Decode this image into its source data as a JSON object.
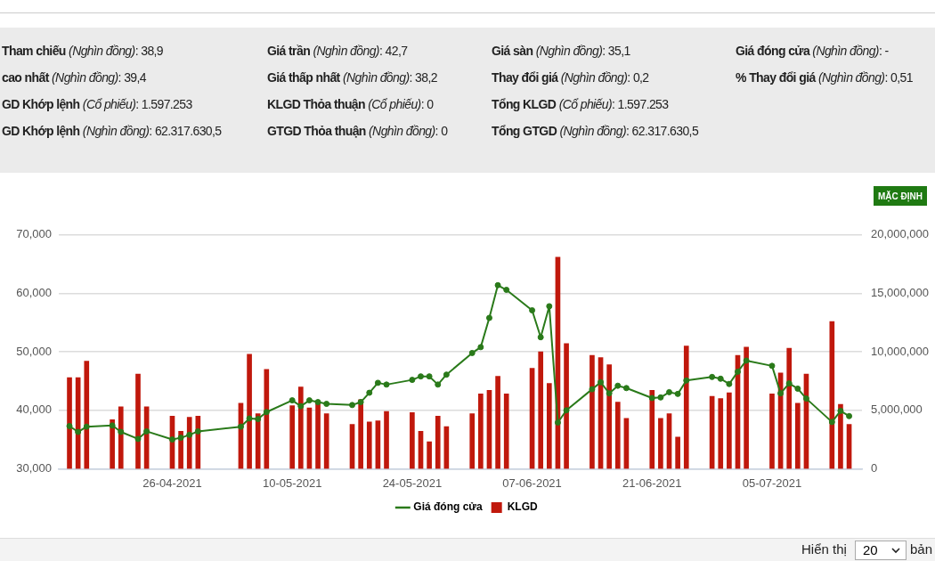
{
  "chart_data": {
    "type": "bar",
    "annotations": [
      "Tham chiếu (Nghìn đồng): 38,9",
      "Giá trần (Nghìn đồng): 42,7",
      "Giá sàn (Nghìn đồng): 35,1",
      "Giá đóng cửa (Nghìn đồng): -",
      "cao nhất (Nghìn đồng): 39,4",
      "Giá thấp nhất (Nghìn đồng): 38,2",
      "Thay đổi giá (Nghìn đồng): 0,2",
      "% Thay đổi giá (Nghìn đồng): 0,51",
      "GD Khớp lệnh (Cổ phiếu): 1.597.253",
      "KLGD Thỏa thuận (Cổ phiếu): 0",
      "Tổng KLGD (Cổ phiếu): 1.597.253",
      "GD Khớp lệnh (Nghìn đồng): 62.317.630,5",
      "GTGD Thỏa thuận (Nghìn đồng): 0",
      "Tổng GTGD (Nghìn đồng): 62.317.630,5",
      "MẶC ĐỊNH",
      "Hiển thị",
      "20",
      "bản"
    ],
    "x": [
      "2021-04-14",
      "2021-04-15",
      "2021-04-16",
      "2021-04-19",
      "2021-04-20",
      "2021-04-22",
      "2021-04-23",
      "2021-04-26",
      "2021-04-27",
      "2021-04-28",
      "2021-04-29",
      "2021-05-04",
      "2021-05-05",
      "2021-05-06",
      "2021-05-07",
      "2021-05-10",
      "2021-05-11",
      "2021-05-12",
      "2021-05-13",
      "2021-05-14",
      "2021-05-17",
      "2021-05-18",
      "2021-05-19",
      "2021-05-20",
      "2021-05-21",
      "2021-05-24",
      "2021-05-25",
      "2021-05-26",
      "2021-05-27",
      "2021-05-28",
      "2021-05-31",
      "2021-06-01",
      "2021-06-02",
      "2021-06-03",
      "2021-06-04",
      "2021-06-07",
      "2021-06-08",
      "2021-06-09",
      "2021-06-10",
      "2021-06-11",
      "2021-06-14",
      "2021-06-15",
      "2021-06-16",
      "2021-06-17",
      "2021-06-18",
      "2021-06-21",
      "2021-06-22",
      "2021-06-23",
      "2021-06-24",
      "2021-06-25",
      "2021-06-28",
      "2021-06-29",
      "2021-06-30",
      "2021-07-01",
      "2021-07-02",
      "2021-07-05",
      "2021-07-06",
      "2021-07-07",
      "2021-07-08",
      "2021-07-09",
      "2021-07-12",
      "2021-07-13",
      "2021-07-14"
    ],
    "series": [
      {
        "name": "Giá đóng cửa",
        "type": "line",
        "color": "#2a7a1a",
        "values": [
          37300,
          36300,
          37200,
          37400,
          36300,
          35100,
          36400,
          35000,
          35300,
          35800,
          36400,
          37200,
          38600,
          38500,
          39700,
          41700,
          40700,
          41700,
          41400,
          41100,
          40900,
          41400,
          43000,
          44700,
          44400,
          45200,
          45800,
          45800,
          44400,
          46100,
          49800,
          50800,
          55800,
          61400,
          60600,
          57100,
          52500,
          57800,
          37900,
          40000,
          43600,
          44800,
          42900,
          44200,
          43800,
          42100,
          42200,
          43100,
          42800,
          45100,
          45700,
          45400,
          44500,
          46600,
          48500,
          47600,
          42900,
          44600,
          43700,
          42000,
          38000,
          39900,
          39000
        ]
      },
      {
        "name": "KLGD",
        "axis": "y2",
        "color": "#c0180c",
        "values": [
          7800000,
          7800000,
          9200000,
          4200000,
          5300000,
          8100000,
          5300000,
          4500000,
          3200000,
          4400000,
          4500000,
          5600000,
          9800000,
          4700000,
          8500000,
          5400000,
          7000000,
          5200000,
          5700000,
          4700000,
          3800000,
          5900000,
          4000000,
          4100000,
          4900000,
          4800000,
          3200000,
          2300000,
          4500000,
          3600000,
          4700000,
          6400000,
          6700000,
          7900000,
          6400000,
          8600000,
          10000000,
          7300000,
          18100000,
          10700000,
          9700000,
          9500000,
          8900000,
          5700000,
          4300000,
          6700000,
          4300000,
          4700000,
          2700000,
          10500000,
          6200000,
          6000000,
          6500000,
          9700000,
          10400000,
          6400000,
          8200000,
          10300000,
          5600000,
          8100000,
          12600000,
          5500000,
          3800000
        ]
      }
    ],
    "xlim": [
      "2021-04-12T18:00",
      "2021-07-15T12:00"
    ],
    "xticks": [
      {
        "value": "2021-04-26",
        "label": "26-04-2021"
      },
      {
        "value": "2021-05-10",
        "label": "10-05-2021"
      },
      {
        "value": "2021-05-24",
        "label": "24-05-2021"
      },
      {
        "value": "2021-06-07",
        "label": "07-06-2021"
      },
      {
        "value": "2021-06-21",
        "label": "21-06-2021"
      },
      {
        "value": "2021-07-05",
        "label": "05-07-2021"
      }
    ],
    "ylim": [
      30000,
      70000
    ],
    "yticks": [
      {
        "value": 30000,
        "label": "30,000"
      },
      {
        "value": 40000,
        "label": "40,000"
      },
      {
        "value": 50000,
        "label": "50,000"
      },
      {
        "value": 60000,
        "label": "60,000"
      },
      {
        "value": 70000,
        "label": "70,000"
      }
    ],
    "y2lim": [
      0,
      20000000
    ],
    "y2ticks": [
      0,
      {
        "value": 5000000,
        "label": "5,000,000"
      },
      {
        "value": 10000000,
        "label": "10,000,000"
      },
      {
        "value": 15000000,
        "label": "15,000,000"
      },
      {
        "value": 20000000,
        "label": "20,000,000"
      }
    ],
    "grid": "y",
    "legend": "bottom",
    "marker": "circle",
    "line_style": "solid"
  }
}
